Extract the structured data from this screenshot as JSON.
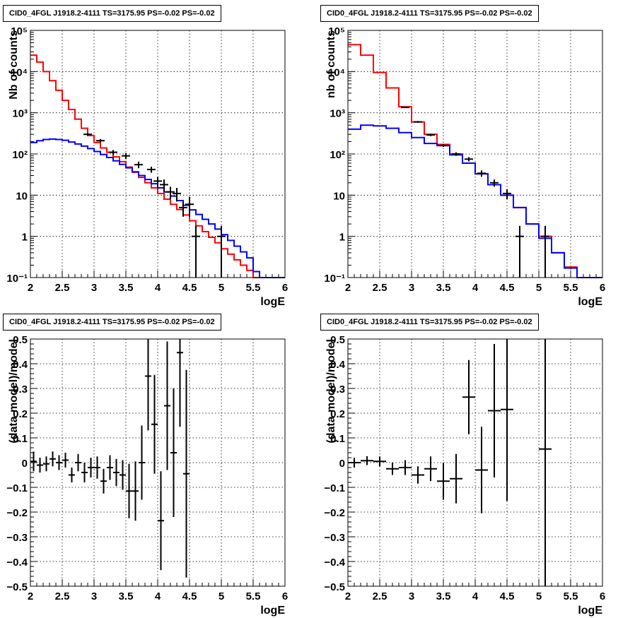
{
  "chart_data": [
    {
      "type": "step-line",
      "title": "CID0_4FGL J1918.2-4111 TS=3175.95 PS=-0.02 PS=-0.02",
      "xlabel": "logE",
      "ylabel": "Nb of counts",
      "xlim": [
        2,
        6
      ],
      "ylim": [
        0.1,
        100000
      ],
      "y_log": true,
      "grid": true,
      "x_ticks": [
        "2",
        "2.5",
        "3",
        "3.5",
        "4",
        "4.5",
        "5",
        "5.5",
        "6"
      ],
      "y_ticks": [
        "10⁻¹",
        "1",
        "10",
        "10²",
        "10³",
        "10⁴",
        "10⁵"
      ],
      "bin_edges": [
        2.0,
        2.1,
        2.2,
        2.3,
        2.4,
        2.5,
        2.6,
        2.7,
        2.8,
        2.9,
        3.0,
        3.1,
        3.2,
        3.3,
        3.4,
        3.5,
        3.6,
        3.7,
        3.8,
        3.9,
        4.0,
        4.1,
        4.2,
        4.3,
        4.4,
        4.5,
        4.6,
        4.7,
        4.8,
        4.9,
        5.0,
        5.1,
        5.2,
        5.3,
        5.4,
        5.5,
        5.6,
        5.7,
        5.8,
        5.9,
        6.0
      ],
      "series": [
        {
          "color": "#ff0000",
          "values": [
            25000,
            17000,
            10000,
            6000,
            3500,
            2000,
            1200,
            700,
            420,
            280,
            190,
            140,
            110,
            85,
            65,
            48,
            36,
            27,
            20,
            15,
            11,
            8,
            6,
            4.5,
            3.3,
            2.4,
            1.8,
            1.3,
            0.95,
            0.7,
            0.5,
            0.37,
            0.27,
            0.2,
            0.15,
            0.1,
            0.1,
            0.1,
            0.1,
            0.1
          ]
        },
        {
          "color": "#0000ff",
          "values": [
            190,
            210,
            225,
            230,
            225,
            215,
            195,
            175,
            155,
            135,
            115,
            97,
            82,
            68,
            56,
            46,
            37,
            30,
            24,
            19,
            15,
            12,
            9.5,
            7.4,
            5.7,
            4.4,
            3.4,
            2.6,
            2,
            1.5,
            1.1,
            0.8,
            0.58,
            0.42,
            0.3,
            0.14,
            0.1,
            0.1,
            0.1,
            0.1
          ]
        }
      ],
      "points": {
        "x": [
          2.9,
          3.1,
          3.3,
          3.5,
          3.7,
          3.9,
          4.0,
          4.1,
          4.2,
          4.3,
          4.4,
          4.5,
          4.6,
          5.0
        ],
        "y": [
          300,
          210,
          110,
          90,
          55,
          42,
          22,
          18,
          12,
          11,
          5,
          6,
          1,
          1
        ],
        "err_lo": [
          280,
          190,
          95,
          75,
          45,
          35,
          16,
          12,
          8,
          7,
          3,
          3,
          0.01,
          0.01
        ],
        "err_hi": [
          320,
          230,
          125,
          105,
          65,
          49,
          28,
          24,
          16,
          15,
          7,
          9,
          1.8,
          1.8
        ]
      }
    },
    {
      "type": "step-line",
      "title": "CID0_4FGL J1918.2-4111 TS=3175.95 PS=-0.02 PS=-0.02",
      "xlabel": "logE",
      "ylabel": "nb of counts",
      "xlim": [
        2,
        6
      ],
      "ylim": [
        0.1,
        100000
      ],
      "y_log": true,
      "grid": true,
      "x_ticks": [
        "2",
        "2.5",
        "3",
        "3.5",
        "4",
        "4.5",
        "5",
        "5.5",
        "6"
      ],
      "y_ticks": [
        "10⁻¹",
        "1",
        "10",
        "10²",
        "10³",
        "10⁴",
        "10⁵"
      ],
      "bin_edges": [
        2.0,
        2.2,
        2.4,
        2.6,
        2.8,
        3.0,
        3.2,
        3.4,
        3.6,
        3.8,
        4.0,
        4.2,
        4.4,
        4.6,
        4.8,
        5.0,
        5.2,
        5.4,
        5.6,
        5.8,
        6.0
      ],
      "series": [
        {
          "color": "#ff0000",
          "values": [
            45000,
            25000,
            9500,
            4000,
            1400,
            600,
            300,
            170,
            100,
            60,
            33,
            18,
            10,
            5,
            2,
            1,
            0.4,
            0.18,
            0.1,
            0.1
          ]
        },
        {
          "color": "#0000ff",
          "values": [
            400,
            500,
            480,
            420,
            330,
            250,
            180,
            160,
            95,
            60,
            33,
            18,
            10,
            5,
            2,
            0.9,
            0.4,
            0.17,
            0.1,
            0.1
          ]
        }
      ],
      "points": {
        "x": [
          2.9,
          3.1,
          3.3,
          3.5,
          3.7,
          3.9,
          4.1,
          4.3,
          4.5,
          4.7,
          5.1
        ],
        "y": [
          1350,
          600,
          290,
          160,
          100,
          75,
          34,
          20,
          11,
          1,
          1
        ],
        "err_lo": [
          1300,
          570,
          270,
          148,
          90,
          66,
          28,
          16,
          8,
          0.01,
          0.01
        ],
        "err_hi": [
          1400,
          630,
          310,
          172,
          110,
          84,
          40,
          24,
          14,
          1.8,
          1.8
        ]
      }
    },
    {
      "type": "scatter-errorbar",
      "title": "CID0_4FGL J1918.2-4111 TS=3175.95 PS=-0.02 PS=-0.02",
      "xlabel": "logE",
      "ylabel": "(data-model)/model",
      "xlim": [
        2,
        6
      ],
      "ylim": [
        -0.5,
        0.5
      ],
      "grid": true,
      "x_ticks": [
        "2",
        "2.5",
        "3",
        "3.5",
        "4",
        "4.5",
        "5",
        "5.5",
        "6"
      ],
      "y_ticks": [
        "−0.5",
        "−0.4",
        "−0.3",
        "−0.2",
        "−0.1",
        "0",
        "0.1",
        "0.2",
        "0.3",
        "0.4",
        "0.5"
      ],
      "points": {
        "x": [
          2.05,
          2.15,
          2.25,
          2.35,
          2.45,
          2.55,
          2.65,
          2.75,
          2.85,
          2.95,
          3.05,
          3.15,
          3.25,
          3.35,
          3.45,
          3.55,
          3.65,
          3.75,
          3.85,
          3.95,
          4.05,
          4.15,
          4.25,
          4.35,
          4.45
        ],
        "y": [
          0.005,
          -0.01,
          -0.005,
          0.015,
          0.0,
          0.01,
          -0.05,
          0.0,
          -0.04,
          -0.02,
          -0.02,
          -0.075,
          -0.02,
          -0.04,
          -0.05,
          -0.115,
          -0.115,
          0.0,
          0.35,
          0.155,
          -0.235,
          0.23,
          0.04,
          0.445,
          -0.045
        ],
        "yerr": [
          0.04,
          0.03,
          0.03,
          0.03,
          0.03,
          0.03,
          0.03,
          0.035,
          0.04,
          0.04,
          0.045,
          0.05,
          0.05,
          0.055,
          0.06,
          0.11,
          0.12,
          0.15,
          0.22,
          0.2,
          0.2,
          0.26,
          0.26,
          0.3,
          0.42
        ],
        "xerr": 0.05
      }
    },
    {
      "type": "scatter-errorbar",
      "title": "CID0_4FGL J1918.2-4111 TS=3175.95 PS=-0.02 PS=-0.02",
      "xlabel": "logE",
      "ylabel": "(data-model)/model",
      "xlim": [
        2,
        6
      ],
      "ylim": [
        -0.5,
        0.5
      ],
      "grid": true,
      "x_ticks": [
        "2",
        "2.5",
        "3",
        "3.5",
        "4",
        "4.5",
        "5",
        "5.5",
        "6"
      ],
      "y_ticks": [
        "−0.5",
        "−0.4",
        "−0.3",
        "−0.2",
        "−0.1",
        "0",
        "0.1",
        "0.2",
        "0.3",
        "0.4",
        "0.5"
      ],
      "points": {
        "x": [
          2.1,
          2.3,
          2.5,
          2.7,
          2.9,
          3.1,
          3.3,
          3.5,
          3.7,
          3.9,
          4.1,
          4.3,
          4.5,
          5.1
        ],
        "y": [
          0.0,
          0.008,
          0.005,
          -0.025,
          -0.02,
          -0.05,
          -0.025,
          -0.075,
          -0.065,
          0.265,
          -0.03,
          0.21,
          0.215,
          0.055
        ],
        "yerr": [
          0.02,
          0.018,
          0.02,
          0.025,
          0.03,
          0.035,
          0.05,
          0.075,
          0.1,
          0.15,
          0.175,
          0.27,
          0.37,
          0.8
        ],
        "xerr": 0.1
      }
    }
  ]
}
